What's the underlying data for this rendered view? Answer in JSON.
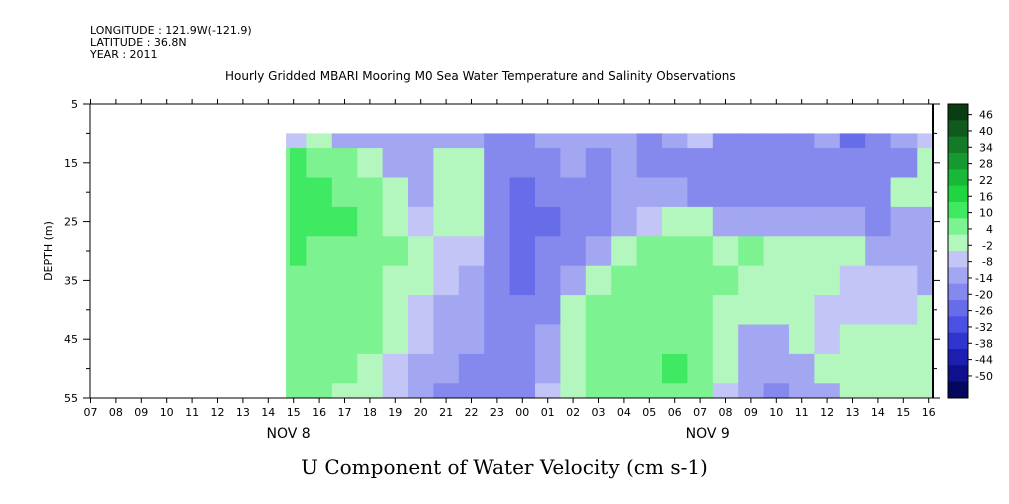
{
  "meta": {
    "longitude": "LONGITUDE : 121.9W(-121.9)",
    "latitude": "LATITUDE : 36.8N",
    "year": "YEAR : 2011"
  },
  "chart_data": {
    "type": "heatmap",
    "title": "Hourly Gridded MBARI Mooring M0 Sea Water Temperature and Salinity Observations",
    "xlabel": "U Component of Water Velocity (cm s-1)",
    "ylabel": "DEPTH (m)",
    "x_ticks": [
      "07",
      "08",
      "09",
      "10",
      "11",
      "12",
      "13",
      "14",
      "15",
      "16",
      "17",
      "18",
      "19",
      "20",
      "21",
      "22",
      "23",
      "00",
      "01",
      "02",
      "03",
      "04",
      "05",
      "06",
      "07",
      "08",
      "09",
      "10",
      "11",
      "12",
      "13",
      "14",
      "15",
      "16"
    ],
    "day_labels": [
      {
        "label": "NOV 8",
        "tick_index": 7.8
      },
      {
        "label": "NOV 9",
        "tick_index": 24.3
      }
    ],
    "y_ticks": [
      5,
      15,
      25,
      35,
      45,
      55
    ],
    "ylim": [
      5,
      55
    ],
    "colorbar_ticks": [
      46,
      40,
      34,
      28,
      22,
      16,
      10,
      4,
      -2,
      -8,
      -14,
      -20,
      -26,
      -32,
      -38,
      -44,
      -50
    ],
    "colorbar_colors": [
      "#0b3d12",
      "#0f5a1c",
      "#137a26",
      "#16992f",
      "#1ab838",
      "#1fd642",
      "#40e962",
      "#7cf290",
      "#b3f7bf",
      "#c2c5f5",
      "#a3a7f2",
      "#8589ee",
      "#676ce9",
      "#4a50e2",
      "#3035d0",
      "#1c1fb0",
      "#0e108c",
      "#05065e"
    ],
    "data_start_hour": 14.7,
    "data_top_depth": 10,
    "depths": [
      10,
      15,
      20,
      25,
      30,
      35,
      40,
      45,
      50,
      55
    ],
    "hours": [
      14.7,
      15,
      16,
      17,
      18,
      19,
      20,
      21,
      22,
      23,
      24,
      25,
      26,
      27,
      28,
      29,
      30,
      31,
      32,
      33,
      34,
      35,
      36,
      37,
      38,
      39,
      40.1
    ],
    "u_values": [
      [
        -2,
        -2,
        6,
        -6,
        -6,
        -4,
        -8,
        -8,
        -8,
        -10,
        -14,
        -8,
        -6,
        -8,
        -6,
        -10,
        -8,
        -2,
        -10,
        -14,
        -10,
        -10,
        -8,
        -16,
        -14,
        -8,
        2
      ],
      [
        12,
        16,
        12,
        10,
        4,
        -4,
        -8,
        8,
        8,
        -10,
        -14,
        -12,
        -8,
        -10,
        -8,
        -10,
        -10,
        -10,
        -14,
        -10,
        -10,
        -12,
        -10,
        -14,
        -14,
        -12,
        4
      ],
      [
        14,
        18,
        16,
        14,
        10,
        4,
        -4,
        6,
        6,
        -10,
        -16,
        -14,
        -10,
        -10,
        -8,
        -8,
        -8,
        -10,
        -12,
        -10,
        -10,
        -12,
        -10,
        -12,
        -14,
        4,
        4
      ],
      [
        14,
        18,
        16,
        16,
        14,
        8,
        2,
        6,
        4,
        -10,
        -18,
        -16,
        -12,
        -10,
        -6,
        -2,
        8,
        4,
        -4,
        -8,
        -6,
        -8,
        -6,
        -8,
        -10,
        -6,
        -8
      ],
      [
        12,
        16,
        14,
        14,
        14,
        10,
        4,
        2,
        -2,
        -10,
        -18,
        -14,
        -10,
        -4,
        4,
        10,
        14,
        12,
        8,
        10,
        6,
        8,
        4,
        4,
        -6,
        -4,
        -6
      ],
      [
        14,
        14,
        14,
        12,
        12,
        8,
        4,
        -2,
        -6,
        -12,
        -16,
        -12,
        -8,
        4,
        10,
        14,
        14,
        12,
        10,
        8,
        8,
        6,
        4,
        2,
        -2,
        -2,
        -6
      ],
      [
        14,
        14,
        14,
        12,
        12,
        6,
        2,
        -4,
        -8,
        -12,
        -14,
        -10,
        4,
        10,
        14,
        14,
        14,
        12,
        8,
        6,
        6,
        4,
        2,
        2,
        2,
        2,
        4
      ],
      [
        12,
        12,
        12,
        10,
        10,
        4,
        -2,
        -6,
        -8,
        -12,
        -14,
        -8,
        6,
        10,
        14,
        14,
        14,
        12,
        6,
        -4,
        -6,
        4,
        2,
        4,
        4,
        4,
        6
      ],
      [
        12,
        12,
        12,
        10,
        8,
        2,
        -4,
        -8,
        -10,
        -14,
        -10,
        -4,
        8,
        12,
        14,
        14,
        16,
        12,
        4,
        -6,
        -8,
        -4,
        4,
        4,
        4,
        4,
        4
      ],
      [
        10,
        10,
        10,
        8,
        6,
        0,
        -6,
        -10,
        -12,
        -14,
        -10,
        2,
        8,
        12,
        12,
        14,
        14,
        10,
        2,
        -8,
        -10,
        -8,
        -4,
        4,
        4,
        4,
        4
      ]
    ]
  }
}
